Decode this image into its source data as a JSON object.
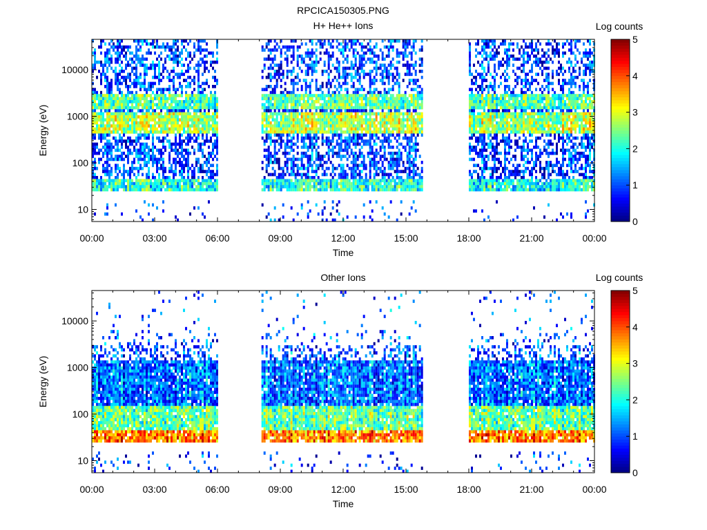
{
  "figure_title": "RPCICA150305.PNG",
  "colors": {
    "colormap": [
      "#00007f",
      "#0000ff",
      "#0080ff",
      "#00ffff",
      "#80ff80",
      "#ffff00",
      "#ff8000",
      "#ff0000",
      "#7f0000"
    ],
    "axis": "#000000",
    "background": "#ffffff"
  },
  "chart_data": [
    {
      "type": "heatmap",
      "title": "H+ He++ Ions",
      "xlabel": "Time",
      "ylabel": "Energy (eV)",
      "x_ticks": [
        "00:00",
        "03:00",
        "06:00",
        "09:00",
        "12:00",
        "15:00",
        "18:00",
        "21:00",
        "00:00"
      ],
      "xlim_hours": [
        0,
        24
      ],
      "y_scale": "log",
      "y_ticks": [
        "10",
        "100",
        "1000",
        "10000"
      ],
      "ylim": [
        5.5,
        45000
      ],
      "colorbar": {
        "label": "Log counts",
        "range": [
          0,
          5
        ],
        "ticks": [
          "0",
          "1",
          "2",
          "3",
          "4",
          "5"
        ]
      },
      "data_intervals_hours": [
        [
          0,
          5.95
        ],
        [
          8.1,
          15.75
        ],
        [
          18.0,
          23.95
        ]
      ],
      "bands": [
        {
          "emin": 1500,
          "emax": 3000,
          "level": 2.3
        },
        {
          "emin": 400,
          "emax": 1200,
          "level": 2.7
        },
        {
          "emin": 25,
          "emax": 45,
          "level": 2.0
        }
      ]
    },
    {
      "type": "heatmap",
      "title": "Other Ions",
      "xlabel": "Time",
      "ylabel": "Energy (eV)",
      "x_ticks": [
        "00:00",
        "03:00",
        "06:00",
        "09:00",
        "12:00",
        "15:00",
        "18:00",
        "21:00",
        "00:00"
      ],
      "xlim_hours": [
        0,
        24
      ],
      "y_scale": "log",
      "y_ticks": [
        "10",
        "100",
        "1000",
        "10000"
      ],
      "ylim": [
        5.5,
        45000
      ],
      "colorbar": {
        "label": "Log counts",
        "range": [
          0,
          5
        ],
        "ticks": [
          "0",
          "1",
          "2",
          "3",
          "4",
          "5"
        ]
      },
      "data_intervals_hours": [
        [
          0,
          5.95
        ],
        [
          8.1,
          15.75
        ],
        [
          18.0,
          23.95
        ]
      ],
      "bands": [
        {
          "emin": 25,
          "emax": 45,
          "level": 3.8
        },
        {
          "emin": 45,
          "emax": 150,
          "level": 2.4
        },
        {
          "emin": 150,
          "emax": 1500,
          "level": 1.2
        }
      ]
    }
  ]
}
